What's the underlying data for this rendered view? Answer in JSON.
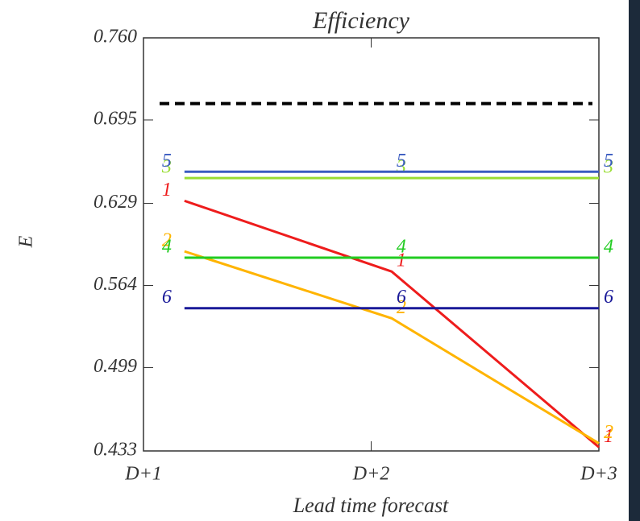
{
  "chart_data": {
    "type": "line",
    "title": "Efficiency",
    "xlabel": "Lead time forecast",
    "ylabel": "E",
    "xlim": [
      1,
      3
    ],
    "xticks": [
      {
        "value": 1,
        "label": "D+1"
      },
      {
        "value": 2,
        "label": "D+2"
      },
      {
        "value": 3,
        "label": "D+3"
      }
    ],
    "ylim": [
      0.433,
      0.76
    ],
    "yticks": [
      0.433,
      0.499,
      0.564,
      0.629,
      0.695,
      {
        "value": 0.76,
        "label": "0.760"
      }
    ],
    "reference_line": {
      "value": 0.708,
      "color": "#000000",
      "dashed": true
    },
    "x": [
      1.18,
      2.09,
      3.0
    ],
    "series": [
      {
        "name": "1",
        "color": "#ee1c1c",
        "values": [
          0.631,
          0.575,
          0.436
        ]
      },
      {
        "name": "2",
        "color": "#ffb400",
        "values": [
          0.591,
          0.538,
          0.439
        ]
      },
      {
        "name": "3",
        "color": "#99dd33",
        "values": [
          0.649,
          0.649,
          0.649
        ]
      },
      {
        "name": "4",
        "color": "#22cc22",
        "values": [
          0.586,
          0.586,
          0.586
        ]
      },
      {
        "name": "5",
        "color": "#3a5bc0",
        "values": [
          0.654,
          0.654,
          0.654
        ]
      },
      {
        "name": "6",
        "color": "#1a1a99",
        "values": [
          0.546,
          0.546,
          0.546
        ]
      }
    ]
  }
}
